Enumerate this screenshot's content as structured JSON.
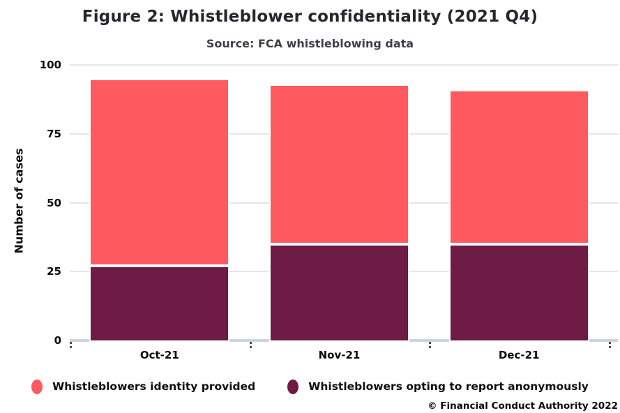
{
  "header": {
    "title": "Figure 2: Whistleblower confidentiality (2021 Q4)",
    "subtitle": "Source: FCA whistleblowing data"
  },
  "footer": {
    "copyright": "© Financial Conduct Authority 2022"
  },
  "colors": {
    "identity_provided": "#ff5a5f",
    "anonymous": "#6e1b46",
    "gridline": "#e5e5ea",
    "axis_line": "#ccd4e1",
    "title_text": "#26262e",
    "label_text": "#0a0a0a"
  },
  "chart_data": {
    "type": "bar",
    "stacked": true,
    "title": "Figure 2: Whistleblower confidentiality (2021 Q4)",
    "subtitle": "Source: FCA whistleblowing data",
    "categories": [
      "Oct-21",
      "Nov-21",
      "Dec-21"
    ],
    "series": [
      {
        "name": "Whistleblowers identity provided",
        "color": "#ff5a5f",
        "values": [
          68,
          58,
          56
        ]
      },
      {
        "name": "Whistleblowers opting to report anonymously",
        "color": "#6e1b46",
        "values": [
          27,
          35,
          35
        ]
      }
    ],
    "totals": [
      95,
      93,
      91
    ],
    "xlabel": "",
    "ylabel": "Number of cases",
    "ylim": [
      0,
      100
    ],
    "yticks": [
      0,
      25,
      50,
      75,
      100
    ],
    "grid": true,
    "legend_position": "bottom"
  }
}
